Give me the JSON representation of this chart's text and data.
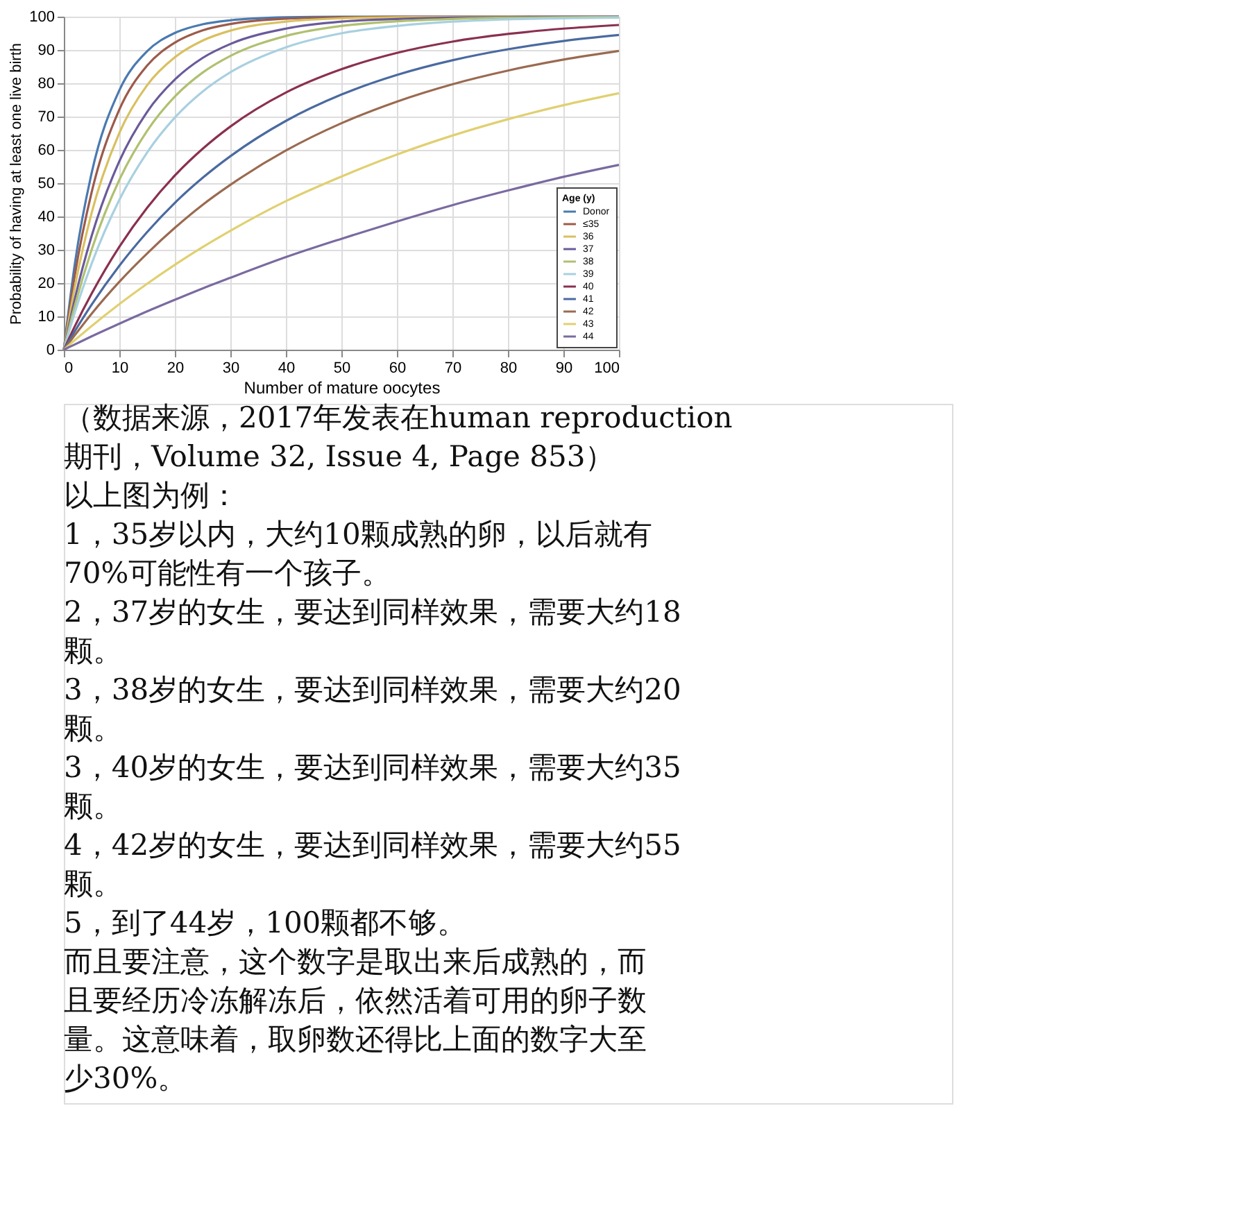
{
  "chart_data": {
    "type": "line",
    "xlabel": "Number of mature oocytes",
    "ylabel": "Probability of having at least one live birth",
    "legend_title": "Age (y)",
    "x": [
      0,
      2,
      5,
      10,
      15,
      20,
      25,
      30,
      40,
      50,
      60,
      70,
      80,
      90,
      100
    ],
    "xlim": [
      0,
      100
    ],
    "xticks": [
      0,
      10,
      20,
      30,
      40,
      50,
      60,
      70,
      80,
      90,
      100
    ],
    "ylim": [
      0,
      100
    ],
    "yticks": [
      0,
      10,
      20,
      30,
      40,
      50,
      60,
      70,
      80,
      90,
      100
    ],
    "grid": true,
    "legend": "bottom right",
    "line_style": "solid",
    "series": [
      {
        "name": "Donor",
        "color": "#4a7ab0",
        "values": [
          0,
          26,
          53,
          77.9,
          89.6,
          95.1,
          97.7,
          98.9,
          99.8,
          100,
          100,
          100,
          100,
          100,
          100
        ]
      },
      {
        "name": "≤35",
        "color": "#9c5a4a",
        "values": [
          0,
          22.6,
          47.2,
          72.1,
          85.3,
          92.2,
          95.9,
          97.8,
          99.4,
          99.8,
          100,
          100,
          100,
          100,
          100
        ]
      },
      {
        "name": "36",
        "color": "#d9c060",
        "values": [
          0,
          19,
          41,
          65.1,
          79.4,
          87.8,
          92.8,
          95.8,
          98.5,
          99.5,
          99.8,
          99.9,
          100,
          100,
          100
        ]
      },
      {
        "name": "37",
        "color": "#6a5a9a",
        "values": [
          0,
          15.4,
          34.1,
          56.6,
          71.4,
          81.1,
          87.6,
          91.8,
          96.4,
          98.5,
          99.3,
          99.7,
          99.9,
          100,
          100
        ]
      },
      {
        "name": "38",
        "color": "#b0c070",
        "values": [
          0,
          13.3,
          30,
          51,
          65.7,
          76,
          83.2,
          88.2,
          94.2,
          97.2,
          98.6,
          99.3,
          99.7,
          99.8,
          99.9
        ]
      },
      {
        "name": "39",
        "color": "#a8d0e0",
        "values": [
          0,
          11.3,
          25.8,
          45,
          59.2,
          69.7,
          77.5,
          83.3,
          90.8,
          95,
          97.2,
          98.5,
          99.2,
          99.5,
          99.7
        ]
      },
      {
        "name": "40",
        "color": "#8a3050",
        "values": [
          0,
          7.1,
          16.8,
          30.9,
          42.6,
          52.3,
          60.3,
          67,
          77.2,
          84.2,
          89.1,
          92.5,
          94.8,
          96.4,
          97.5
        ]
      },
      {
        "name": "41",
        "color": "#4a6aa0",
        "values": [
          0,
          5.6,
          13.5,
          25.2,
          35.3,
          44.1,
          51.6,
          58.1,
          68.7,
          76.6,
          82.5,
          86.9,
          90.2,
          92.7,
          94.5
        ]
      },
      {
        "name": "42",
        "color": "#9a6a50",
        "values": [
          0,
          4.4,
          10.8,
          20.4,
          28.9,
          36.6,
          43.5,
          49.5,
          59.8,
          68,
          74.5,
          79.7,
          83.8,
          87.1,
          89.7
        ]
      },
      {
        "name": "43",
        "color": "#e0d070",
        "values": [
          0,
          2.9,
          7.1,
          13.7,
          19.8,
          25.5,
          30.8,
          35.7,
          44.6,
          52,
          58.6,
          64.3,
          69.2,
          73.4,
          77
        ]
      },
      {
        "name": "44",
        "color": "#7a6aa0",
        "values": [
          0,
          1.6,
          4,
          7.8,
          11.5,
          15,
          18.4,
          21.6,
          27.8,
          33.3,
          38.5,
          43.4,
          47.8,
          51.9,
          55.5
        ]
      }
    ],
    "annotations": [
      "（数据来源，2017年发表在human reproduction",
      "期刊，Volume 32, Issue 4, Page 853）",
      "以上图为例：",
      "1，35岁以内，大约10颗成熟的卵，以后就有",
      "70%可能性有一个孩子。",
      "2，37岁的女生，要达到同样效果，需要大约18",
      "颗。",
      "3，38岁的女生，要达到同样效果，需要大约20",
      "颗。",
      "3，40岁的女生，要达到同样效果，需要大约35",
      "颗。",
      "4，42岁的女生，要达到同样效果，需要大约55",
      "颗。",
      "5，到了44岁，100颗都不够。",
      "而且要注意，这个数字是取出来后成熟的，而",
      "且要经历冷冻解冻后，依然活着可用的卵子数",
      "量。这意味着，取卵数还得比上面的数字大至",
      "少30%。"
    ]
  }
}
